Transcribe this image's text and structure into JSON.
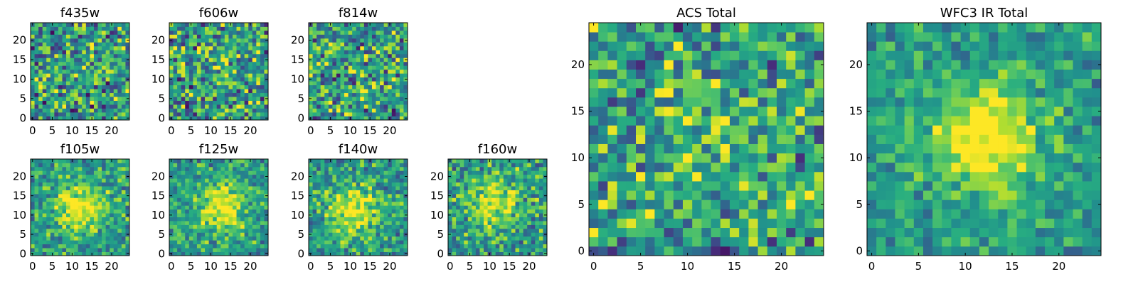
{
  "figure": {
    "colormap": "viridis",
    "colors": {
      "low": "#440154",
      "mid": "#21918c",
      "high": "#fde725",
      "frame": "#000000",
      "background": "#ffffff"
    }
  },
  "chart_data": [
    {
      "type": "heatmap",
      "title": "f435w",
      "grid": [
        25,
        25
      ],
      "xlim": [
        -0.5,
        24.5
      ],
      "ylim": [
        -0.5,
        24.5
      ],
      "xticks": [
        0,
        5,
        10,
        15,
        20
      ],
      "yticks": [
        0,
        5,
        10,
        15,
        20
      ],
      "field": {
        "center": [
          12,
          12
        ],
        "sigma": 6,
        "amplitude": 0.0,
        "noise": 0.55,
        "seed": 11
      }
    },
    {
      "type": "heatmap",
      "title": "f606w",
      "grid": [
        25,
        25
      ],
      "xlim": [
        -0.5,
        24.5
      ],
      "ylim": [
        -0.5,
        24.5
      ],
      "xticks": [
        0,
        5,
        10,
        15,
        20
      ],
      "yticks": [
        0,
        5,
        10,
        15,
        20
      ],
      "field": {
        "center": [
          12,
          12
        ],
        "sigma": 6,
        "amplitude": 0.05,
        "noise": 0.55,
        "seed": 23
      }
    },
    {
      "type": "heatmap",
      "title": "f814w",
      "grid": [
        25,
        25
      ],
      "xlim": [
        -0.5,
        24.5
      ],
      "ylim": [
        -0.5,
        24.5
      ],
      "xticks": [
        0,
        5,
        10,
        15,
        20
      ],
      "yticks": [
        0,
        5,
        10,
        15,
        20
      ],
      "field": {
        "center": [
          12,
          12
        ],
        "sigma": 6,
        "amplitude": 0.05,
        "noise": 0.55,
        "seed": 37
      }
    },
    {
      "type": "heatmap",
      "title": "f105w",
      "grid": [
        25,
        25
      ],
      "xlim": [
        -0.5,
        24.5
      ],
      "ylim": [
        -0.5,
        24.5
      ],
      "xticks": [
        0,
        5,
        10,
        15,
        20
      ],
      "yticks": [
        0,
        5,
        10,
        15,
        20
      ],
      "field": {
        "center": [
          12,
          12
        ],
        "sigma": 4.5,
        "amplitude": 0.45,
        "noise": 0.35,
        "seed": 41
      }
    },
    {
      "type": "heatmap",
      "title": "f125w",
      "grid": [
        25,
        25
      ],
      "xlim": [
        -0.5,
        24.5
      ],
      "ylim": [
        -0.5,
        24.5
      ],
      "xticks": [
        0,
        5,
        10,
        15,
        20
      ],
      "yticks": [
        0,
        5,
        10,
        15,
        20
      ],
      "field": {
        "center": [
          13,
          12
        ],
        "sigma": 4.5,
        "amplitude": 0.45,
        "noise": 0.35,
        "seed": 53
      }
    },
    {
      "type": "heatmap",
      "title": "f140w",
      "grid": [
        25,
        25
      ],
      "xlim": [
        -0.5,
        24.5
      ],
      "ylim": [
        -0.5,
        24.5
      ],
      "xticks": [
        0,
        5,
        10,
        15,
        20
      ],
      "yticks": [
        0,
        5,
        10,
        15,
        20
      ],
      "field": {
        "center": [
          11,
          11
        ],
        "sigma": 4.5,
        "amplitude": 0.45,
        "noise": 0.35,
        "seed": 67
      }
    },
    {
      "type": "heatmap",
      "title": "f160w",
      "grid": [
        25,
        25
      ],
      "xlim": [
        -0.5,
        24.5
      ],
      "ylim": [
        -0.5,
        24.5
      ],
      "xticks": [
        0,
        5,
        10,
        15,
        20
      ],
      "yticks": [
        0,
        5,
        10,
        15,
        20
      ],
      "field": {
        "center": [
          11,
          13
        ],
        "sigma": 4.5,
        "amplitude": 0.4,
        "noise": 0.4,
        "seed": 79
      }
    },
    {
      "type": "heatmap",
      "title": "ACS Total",
      "grid": [
        25,
        25
      ],
      "xlim": [
        -0.5,
        24.5
      ],
      "ylim": [
        -0.5,
        24.5
      ],
      "xticks": [
        0,
        5,
        10,
        15,
        20
      ],
      "yticks": [
        0,
        5,
        10,
        15,
        20
      ],
      "field": {
        "center": [
          12,
          12
        ],
        "sigma": 5,
        "amplitude": 0.15,
        "noise": 0.5,
        "seed": 97
      }
    },
    {
      "type": "heatmap",
      "title": "WFC3 IR Total",
      "grid": [
        25,
        25
      ],
      "xlim": [
        -0.5,
        24.5
      ],
      "ylim": [
        -0.5,
        24.5
      ],
      "xticks": [
        0,
        5,
        10,
        15,
        20
      ],
      "yticks": [
        0,
        5,
        10,
        15,
        20
      ],
      "field": {
        "center": [
          12,
          12
        ],
        "sigma": 4,
        "amplitude": 0.55,
        "noise": 0.28,
        "seed": 101
      }
    }
  ]
}
